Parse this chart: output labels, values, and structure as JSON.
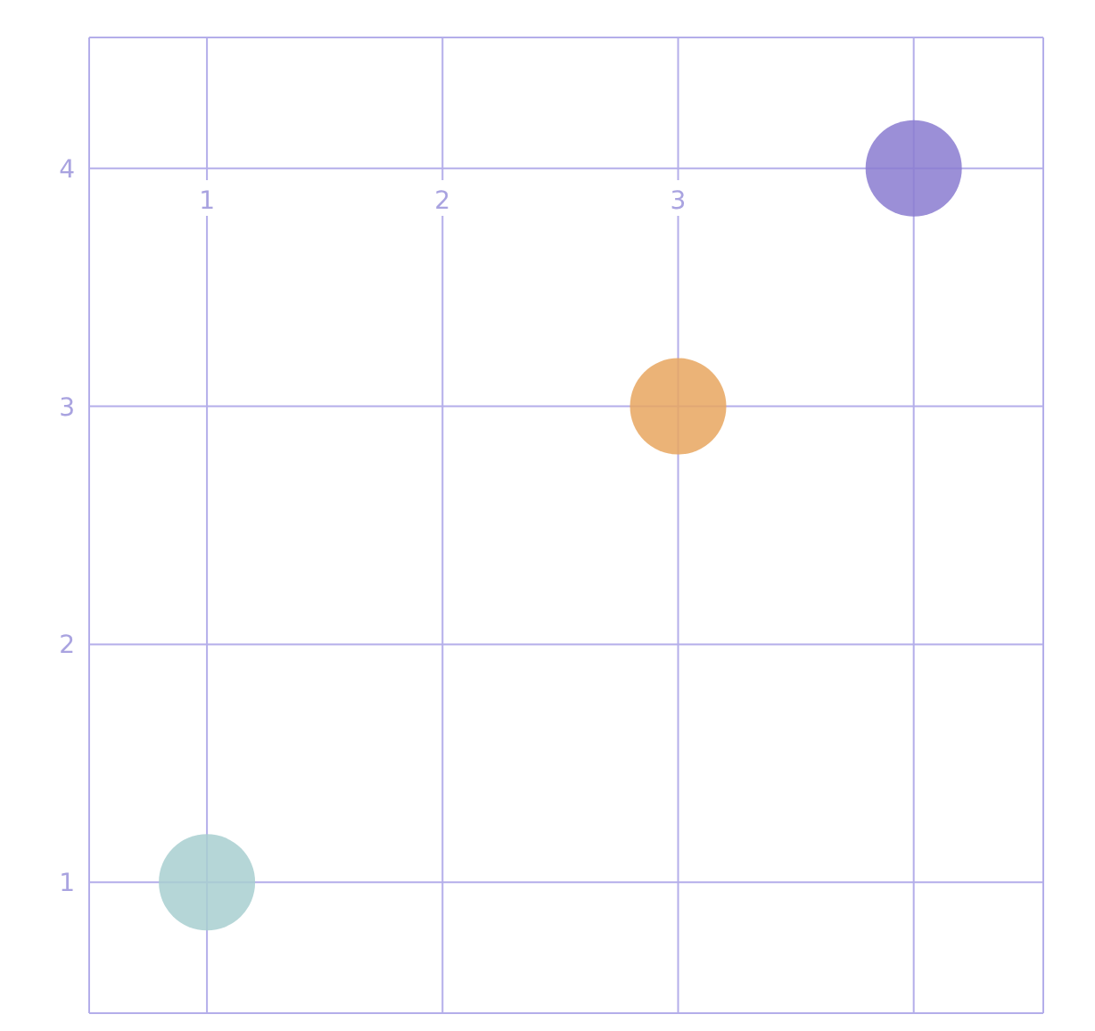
{
  "chart_data": {
    "type": "scatter",
    "x": [
      1,
      3,
      4
    ],
    "values": [
      1,
      3,
      4
    ],
    "colors": [
      "#a8cfd0",
      "#e8a65f",
      "#8a7bd0"
    ],
    "xlim": [
      0.5,
      4.55
    ],
    "ylim": [
      0.45,
      4.55
    ],
    "xticks": [
      1,
      2,
      3,
      {
        "value": 4,
        "label": null
      }
    ],
    "yticks": [
      1,
      2,
      3,
      4
    ],
    "grid": true
  }
}
